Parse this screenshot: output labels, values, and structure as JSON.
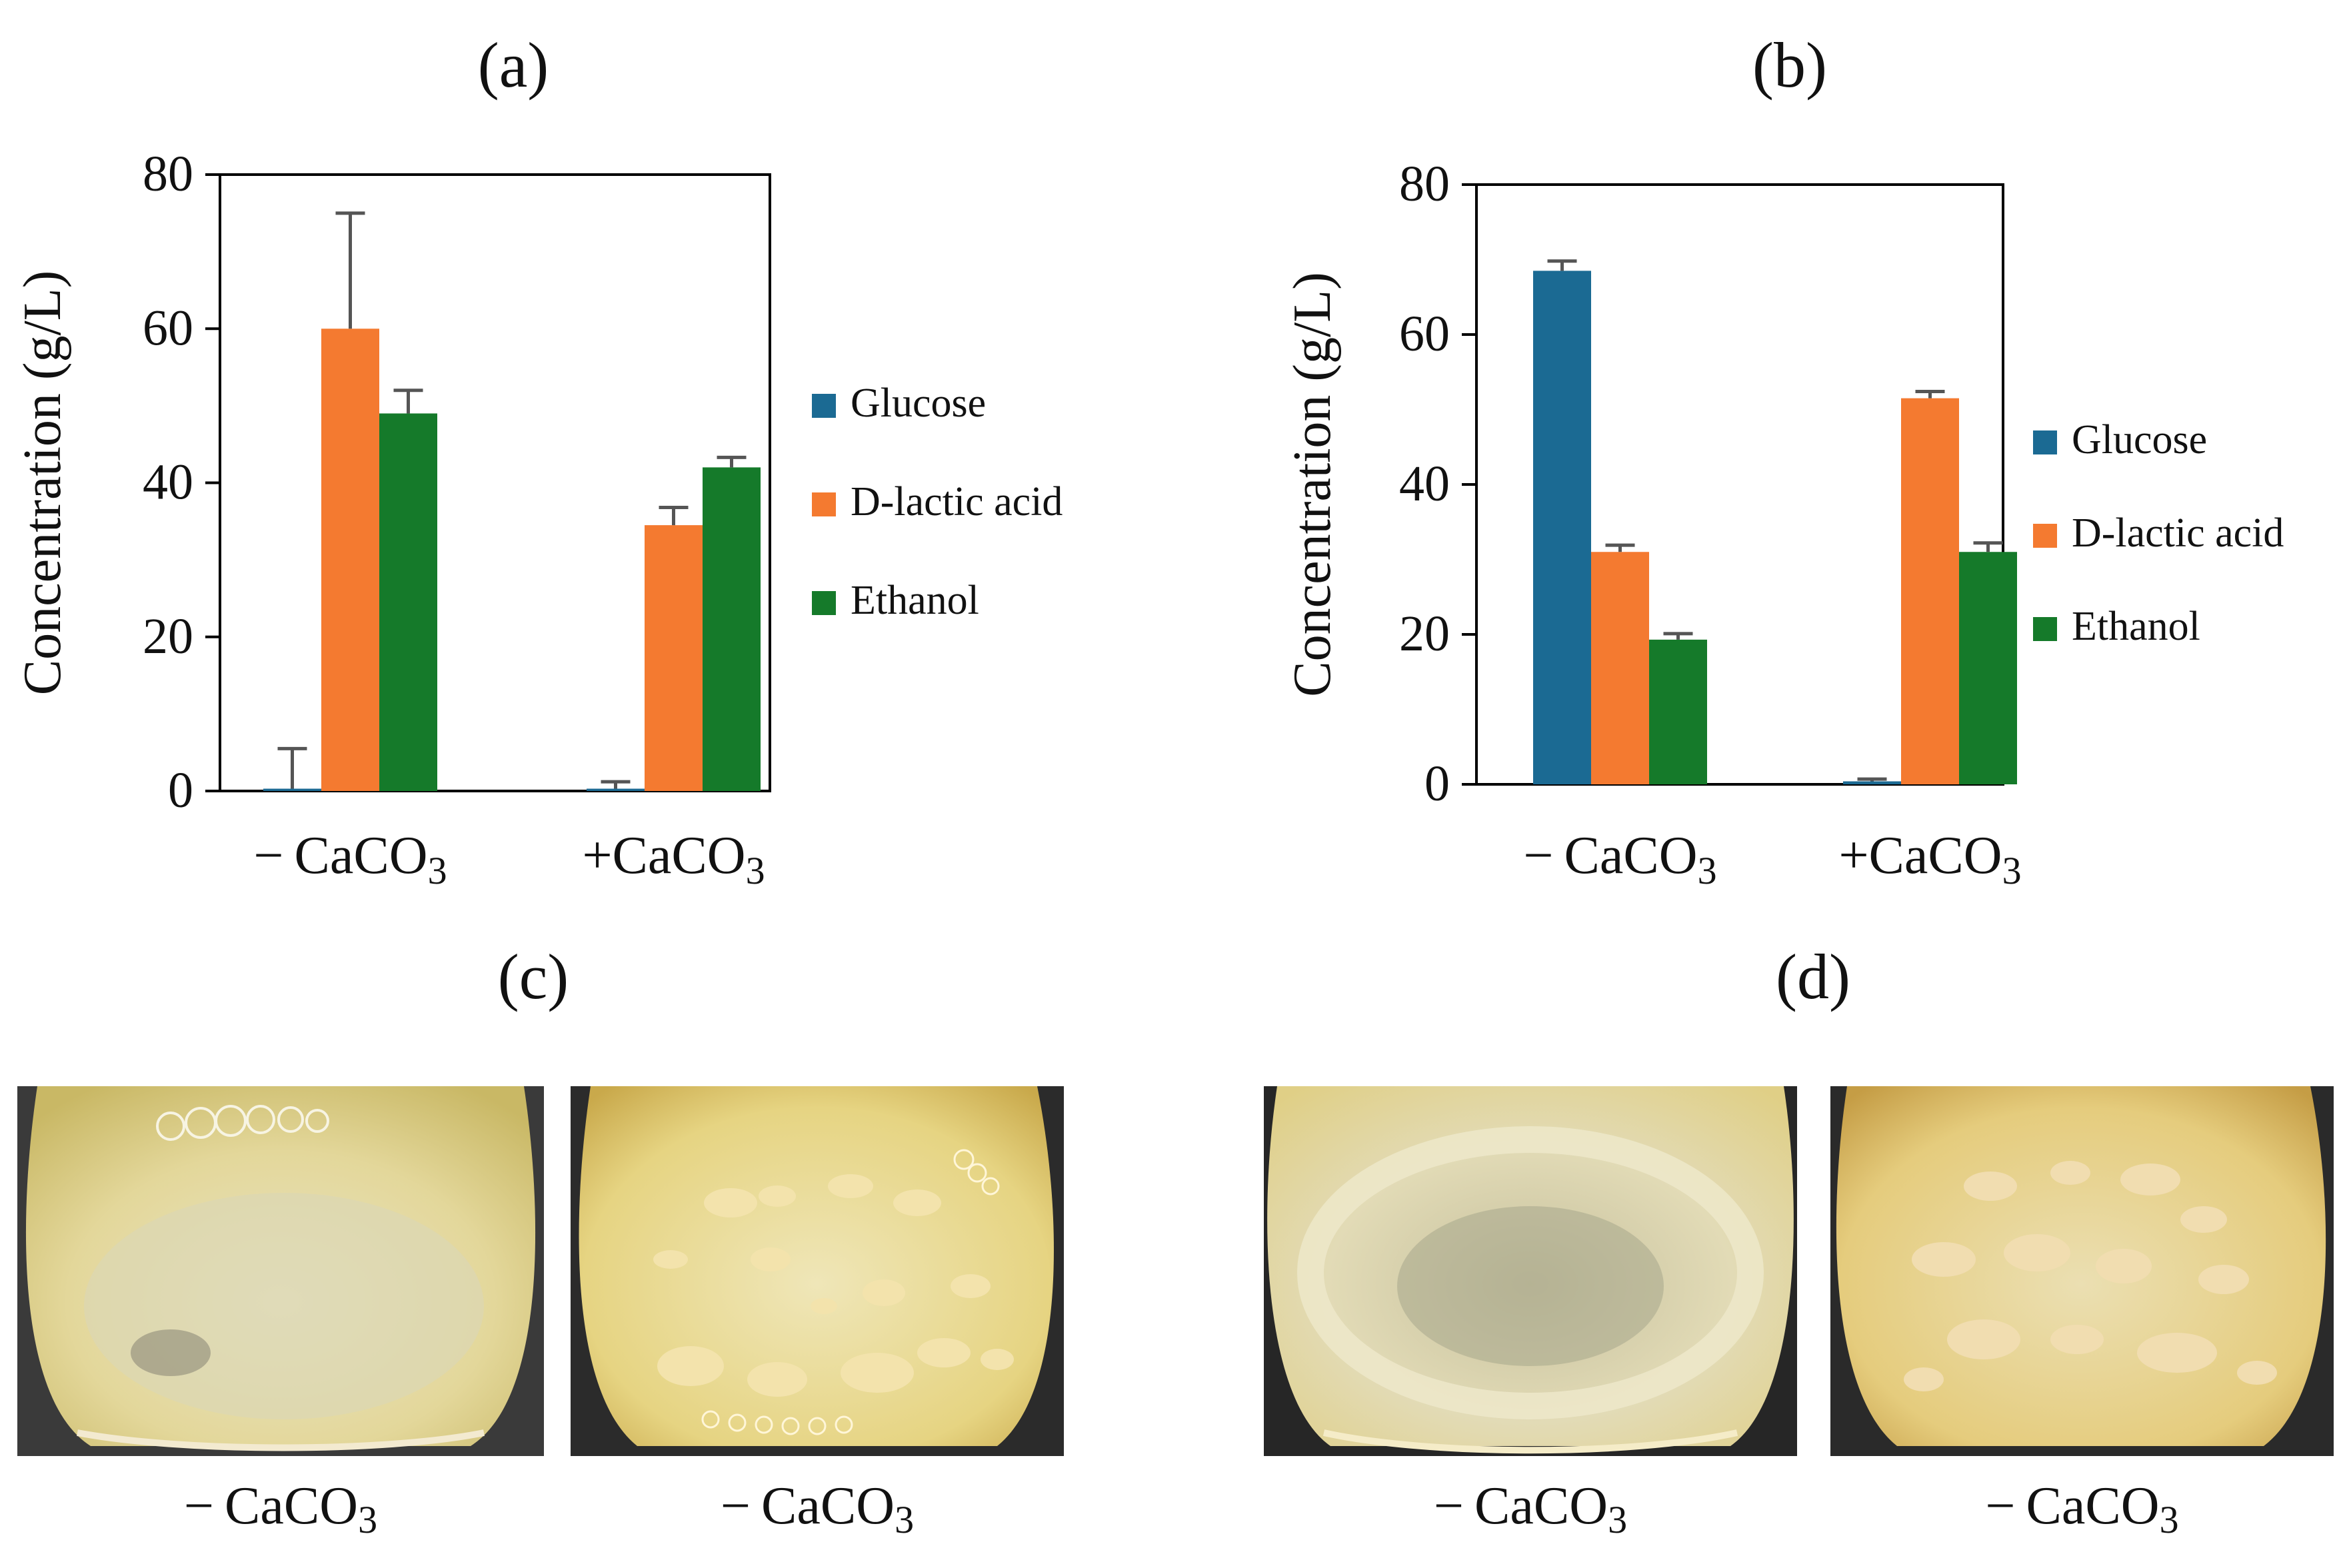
{
  "colors": {
    "glucose": "#1b6a93",
    "lactic": "#f47a30",
    "ethanol": "#157a2a",
    "axis": "#000000",
    "error": "#555555"
  },
  "chart_data": [
    {
      "type": "bar",
      "panel": "(a)",
      "categories": [
        "−CaCO3",
        "+CaCO3"
      ],
      "category_labels": [
        {
          "prefix": "− CaCO",
          "sub": "3"
        },
        {
          "prefix": "+CaCO",
          "sub": "3"
        }
      ],
      "ylabel": "Concentration (g/L)",
      "ylim": [
        0,
        80
      ],
      "yticks": [
        0,
        20,
        40,
        60,
        80
      ],
      "series": [
        {
          "name": "Glucose",
          "color_key": "glucose",
          "values": [
            0.3,
            0.3
          ],
          "errors": [
            5.2,
            0.9
          ]
        },
        {
          "name": "D-lactic acid",
          "color_key": "lactic",
          "values": [
            60,
            34.5
          ],
          "errors": [
            15,
            2.3
          ]
        },
        {
          "name": "Ethanol",
          "color_key": "ethanol",
          "values": [
            49,
            42
          ],
          "errors": [
            3,
            1.3
          ]
        }
      ],
      "legend": [
        "Glucose",
        "D-lactic acid",
        "Ethanol"
      ]
    },
    {
      "type": "bar",
      "panel": "(b)",
      "categories": [
        "−CaCO3",
        "+CaCO3"
      ],
      "category_labels": [
        {
          "prefix": "− CaCO",
          "sub": "3"
        },
        {
          "prefix": "+CaCO",
          "sub": "3"
        }
      ],
      "ylabel": "Concentration  (g/L)",
      "ylim": [
        0,
        80
      ],
      "yticks": [
        0,
        20,
        40,
        60,
        80
      ],
      "series": [
        {
          "name": "Glucose",
          "color_key": "glucose",
          "values": [
            68.5,
            0.4
          ],
          "errors": [
            1.3,
            0.3
          ]
        },
        {
          "name": "D-lactic acid",
          "color_key": "lactic",
          "values": [
            31,
            51.5
          ],
          "errors": [
            0.9,
            0.9
          ]
        },
        {
          "name": "Ethanol",
          "color_key": "ethanol",
          "values": [
            19.3,
            31
          ],
          "errors": [
            0.8,
            1.2
          ]
        }
      ],
      "legend": [
        "Glucose",
        "D-lactic acid",
        "Ethanol"
      ]
    }
  ],
  "panels": {
    "c": {
      "label": "(c)",
      "captions": [
        {
          "prefix": "− CaCO",
          "sub": "3"
        },
        {
          "prefix": "− CaCO",
          "sub": "3"
        }
      ]
    },
    "d": {
      "label": "(d)",
      "captions": [
        {
          "prefix": "− CaCO",
          "sub": "3"
        },
        {
          "prefix": "− CaCO",
          "sub": "3"
        }
      ]
    }
  }
}
